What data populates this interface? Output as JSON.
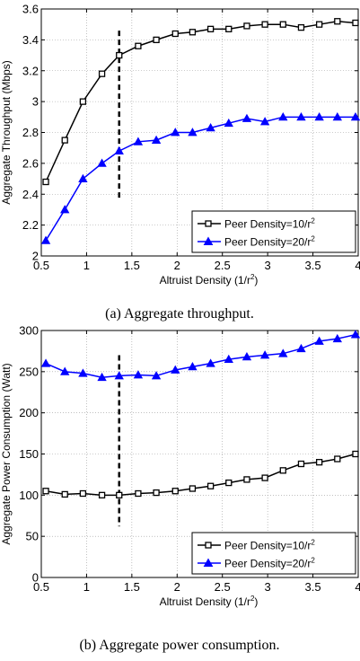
{
  "chart_data": [
    {
      "type": "line",
      "caption": "(a) Aggregate throughput.",
      "xlabel": "Altruist Density (1/r",
      "xlabel_sup": "2",
      "xlabel_tail": ")",
      "ylabel": "Aggregate Throughput (Mbps)",
      "xlim": [
        0.5,
        4
      ],
      "ylim": [
        2,
        3.6
      ],
      "xticks": [
        0.5,
        1,
        1.5,
        2,
        2.5,
        3,
        3.5,
        4
      ],
      "xtick_labels": [
        "0.5",
        "1",
        "1.5",
        "2",
        "2.5",
        "3",
        "3.5",
        "4"
      ],
      "yticks": [
        2,
        2.2,
        2.4,
        2.6,
        2.8,
        3,
        3.2,
        3.4,
        3.6
      ],
      "ytick_labels": [
        "2",
        "2.2",
        "2.4",
        "2.6",
        "2.8",
        "3",
        "3.2",
        "3.4",
        "3.6"
      ],
      "grid": true,
      "legend_position": "lower-right",
      "vline": {
        "x": 1.36,
        "y_range": [
          2.36,
          3.46
        ]
      },
      "x": [
        0.55,
        0.76,
        0.96,
        1.17,
        1.36,
        1.57,
        1.77,
        1.98,
        2.17,
        2.37,
        2.57,
        2.77,
        2.97,
        3.17,
        3.37,
        3.57,
        3.77,
        3.97
      ],
      "series": [
        {
          "name": "Peer Density=10/r",
          "name_sup": "2",
          "marker": "square",
          "color": "#000000",
          "values": [
            2.48,
            2.75,
            3.0,
            3.18,
            3.3,
            3.36,
            3.4,
            3.44,
            3.45,
            3.47,
            3.47,
            3.49,
            3.5,
            3.5,
            3.48,
            3.5,
            3.52,
            3.51
          ]
        },
        {
          "name": "Peer Density=20/r",
          "name_sup": "2",
          "marker": "triangle",
          "color": "#0000ff",
          "values": [
            2.1,
            2.3,
            2.5,
            2.6,
            2.68,
            2.74,
            2.75,
            2.8,
            2.8,
            2.83,
            2.86,
            2.89,
            2.87,
            2.9,
            2.9,
            2.9,
            2.9,
            2.9
          ]
        }
      ]
    },
    {
      "type": "line",
      "caption": "(b) Aggregate power consumption.",
      "xlabel": "Altruist Density (1/r",
      "xlabel_sup": "2",
      "xlabel_tail": ")",
      "ylabel": "Aggregate Power Consumption (Watt)",
      "xlim": [
        0.5,
        4
      ],
      "ylim": [
        0,
        300
      ],
      "xticks": [
        0.5,
        1,
        1.5,
        2,
        2.5,
        3,
        3.5,
        4
      ],
      "xtick_labels": [
        "0.5",
        "1",
        "1.5",
        "2",
        "2.5",
        "3",
        "3.5",
        "4"
      ],
      "yticks": [
        0,
        50,
        100,
        150,
        200,
        250,
        300
      ],
      "ytick_labels": [
        "0",
        "50",
        "100",
        "150",
        "200",
        "250",
        "300"
      ],
      "grid": true,
      "legend_position": "lower-right",
      "vline": {
        "x": 1.36,
        "y_range": [
          62,
          270
        ]
      },
      "x": [
        0.55,
        0.76,
        0.96,
        1.17,
        1.36,
        1.57,
        1.77,
        1.98,
        2.17,
        2.37,
        2.57,
        2.77,
        2.97,
        3.17,
        3.37,
        3.57,
        3.77,
        3.97
      ],
      "series": [
        {
          "name": "Peer Density=10/r",
          "name_sup": "2",
          "marker": "square",
          "color": "#000000",
          "values": [
            105,
            101,
            102,
            100,
            100,
            102,
            103,
            105,
            108,
            111,
            115,
            119,
            121,
            130,
            138,
            140,
            144,
            150
          ]
        },
        {
          "name": "Peer Density=20/r",
          "name_sup": "2",
          "marker": "triangle",
          "color": "#0000ff",
          "values": [
            260,
            250,
            248,
            243,
            245,
            246,
            245,
            252,
            256,
            260,
            265,
            268,
            270,
            272,
            278,
            287,
            290,
            295
          ]
        }
      ]
    }
  ]
}
